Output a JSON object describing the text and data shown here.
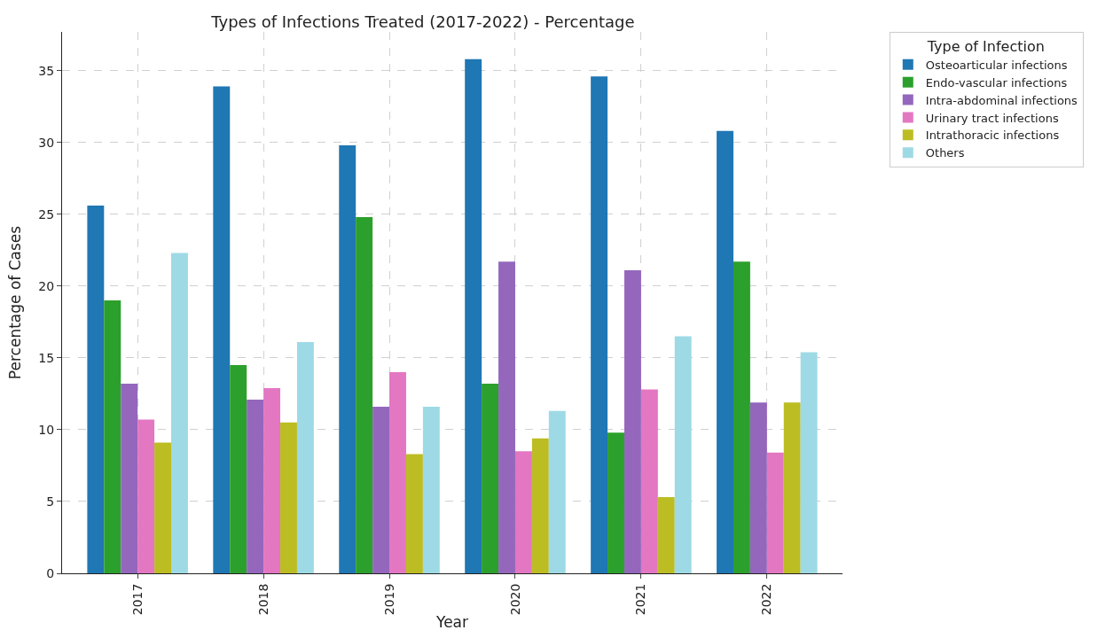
{
  "chart_data": {
    "type": "bar",
    "title": "Types of Infections Treated (2017-2022) - Percentage",
    "xlabel": "Year",
    "ylabel": "Percentage of Cases",
    "legend_title": "Type of Infection",
    "categories": [
      "2017",
      "2018",
      "2019",
      "2020",
      "2021",
      "2022"
    ],
    "series": [
      {
        "name": "Osteoarticular infections",
        "color": "#1f77b4",
        "values": [
          25.6,
          33.9,
          29.8,
          35.8,
          34.6,
          30.8
        ]
      },
      {
        "name": "Endo-vascular infections",
        "color": "#2ca02c",
        "values": [
          19.0,
          14.5,
          24.8,
          13.2,
          9.8,
          21.7
        ]
      },
      {
        "name": "Intra-abdominal infections",
        "color": "#9467bd",
        "values": [
          13.2,
          12.1,
          11.6,
          21.7,
          21.1,
          11.9
        ]
      },
      {
        "name": "Urinary tract infections",
        "color": "#e377c2",
        "values": [
          10.7,
          12.9,
          14.0,
          8.5,
          12.8,
          8.4
        ]
      },
      {
        "name": "Intrathoracic infections",
        "color": "#bcbd22",
        "values": [
          9.1,
          10.5,
          8.3,
          9.4,
          5.3,
          11.9
        ]
      },
      {
        "name": "Others",
        "color": "#9edae5",
        "values": [
          22.3,
          16.1,
          11.6,
          11.3,
          16.5,
          15.4
        ]
      }
    ],
    "ylim": [
      0,
      37.7
    ],
    "yticks": [
      0,
      5,
      10,
      15,
      20,
      25,
      30,
      35
    ],
    "grid": true,
    "legend": "top right"
  }
}
